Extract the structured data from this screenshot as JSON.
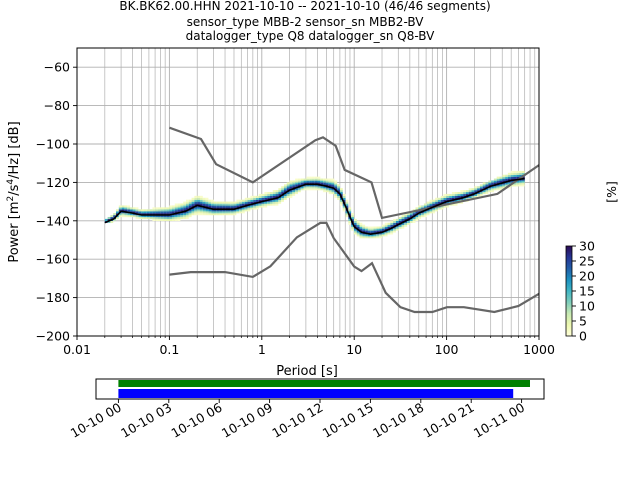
{
  "header": {
    "title_line1": "BK.BK62.00.HHN   2021-10-10 -- 2021-10-10  (46/46 segments)",
    "title_line2": "sensor_type MBB-2 sensor_sn MBB2-BV",
    "title_line3": "datalogger_type Q8 datalogger_sn Q8-BV"
  },
  "chart_data": [
    {
      "type": "heatmap",
      "name": "probabilistic-psd",
      "xlabel": "Period [s]",
      "ylabel": "Power [m²/s⁴/Hz] [dB]",
      "xscale": "log",
      "xlim": [
        0.01,
        1000
      ],
      "ylim": [
        -200,
        -50
      ],
      "xticks": [
        0.01,
        0.1,
        1,
        10,
        100,
        1000
      ],
      "xtick_labels": [
        "0.01",
        "0.1",
        "1",
        "10",
        "100",
        "1000"
      ],
      "yticks": [
        -200,
        -180,
        -160,
        -140,
        -120,
        -100,
        -80,
        -60
      ],
      "ytick_labels": [
        "−200",
        "−180",
        "−160",
        "−140",
        "−120",
        "−100",
        "−80",
        "−60"
      ],
      "grid": true,
      "colorbar": {
        "label": "[%]",
        "min": 0,
        "max": 30,
        "ticks": [
          0,
          5,
          10,
          15,
          20,
          25,
          30
        ],
        "tick_labels": [
          "0",
          "5",
          "10",
          "15",
          "20",
          "25",
          "30"
        ],
        "colormap": [
          "#ffffd9",
          "#edf8b1",
          "#c7e9b4",
          "#7fcdbb",
          "#41b6c4",
          "#1d91c0",
          "#225ea8",
          "#253494",
          "#2d0b52"
        ]
      },
      "mean_curve": {
        "color": "#000000",
        "x": [
          0.02,
          0.025,
          0.03,
          0.04,
          0.05,
          0.07,
          0.1,
          0.15,
          0.2,
          0.3,
          0.5,
          0.7,
          1,
          1.5,
          2,
          3,
          4,
          5,
          6,
          7,
          8,
          9,
          10,
          12,
          15,
          20,
          25,
          30,
          40,
          50,
          70,
          100,
          150,
          200,
          300,
          500,
          700
        ],
        "y": [
          -141,
          -139,
          -135,
          -136,
          -137,
          -137,
          -137,
          -135,
          -132,
          -134,
          -134,
          -132,
          -130,
          -128,
          -124,
          -121,
          -121,
          -122,
          -123,
          -126,
          -132,
          -138,
          -143,
          -146,
          -147,
          -146,
          -144,
          -142,
          -139,
          -136,
          -133,
          -130,
          -128,
          -126,
          -122,
          -119,
          -118
        ]
      },
      "density_band": {
        "x": [
          0.02,
          0.03,
          0.05,
          0.1,
          0.2,
          0.3,
          0.5,
          1,
          2,
          3,
          5,
          7,
          10,
          15,
          20,
          30,
          50,
          100,
          200,
          500,
          700
        ],
        "upper": [
          -138,
          -133,
          -134,
          -133,
          -128,
          -130,
          -131,
          -127,
          -120,
          -118,
          -118,
          -122,
          -138,
          -144,
          -143,
          -140,
          -134,
          -127,
          -124,
          -116,
          -114
        ],
        "lower": [
          -141,
          -139,
          -139,
          -141,
          -138,
          -138,
          -138,
          -134,
          -129,
          -124,
          -125,
          -131,
          -147,
          -150,
          -149,
          -147,
          -141,
          -134,
          -130,
          -124,
          -122
        ]
      },
      "noise_models": [
        {
          "name": "high-noise-model",
          "color": "#666666",
          "x": [
            0.1,
            0.22,
            0.32,
            0.8,
            3.8,
            4.6,
            6.3,
            7.9,
            15.4,
            20,
            354.8,
            1000
          ],
          "y": [
            -91.5,
            -97.4,
            -110.5,
            -120,
            -98,
            -96.5,
            -101,
            -113.5,
            -120,
            -138.5,
            -126,
            -111
          ]
        },
        {
          "name": "low-noise-model",
          "color": "#666666",
          "x": [
            0.1,
            0.17,
            0.4,
            0.8,
            1.24,
            2.4,
            4.3,
            5,
            6,
            10,
            12,
            15.6,
            21.9,
            31.6,
            45,
            70,
            101,
            154,
            328,
            600,
            1000
          ],
          "y": [
            -168,
            -166.7,
            -166.7,
            -169.2,
            -163.7,
            -148.6,
            -141.1,
            -141.1,
            -149,
            -163.8,
            -166.2,
            -162.1,
            -177.5,
            -185,
            -187.5,
            -187.5,
            -185,
            -185,
            -187.5,
            -184.4,
            -178
          ]
        }
      ]
    },
    {
      "type": "bar",
      "name": "data-coverage",
      "xlim": [
        "2021-10-09T22:40",
        "2021-10-11T01:20"
      ],
      "xtick_labels": [
        "10-10 00",
        "10-10 03",
        "10-10 06",
        "10-10 09",
        "10-10 12",
        "10-10 15",
        "10-10 18",
        "10-10 21",
        "10-11 00"
      ],
      "xtick_hours": [
        0,
        3,
        6,
        9,
        12,
        15,
        18,
        21,
        24
      ],
      "series": [
        {
          "color": "#008000",
          "start_hour": 0,
          "end_hour": 24.5
        },
        {
          "color": "#0000ff",
          "start_hour": 0,
          "end_hour": 23.5
        }
      ]
    }
  ]
}
